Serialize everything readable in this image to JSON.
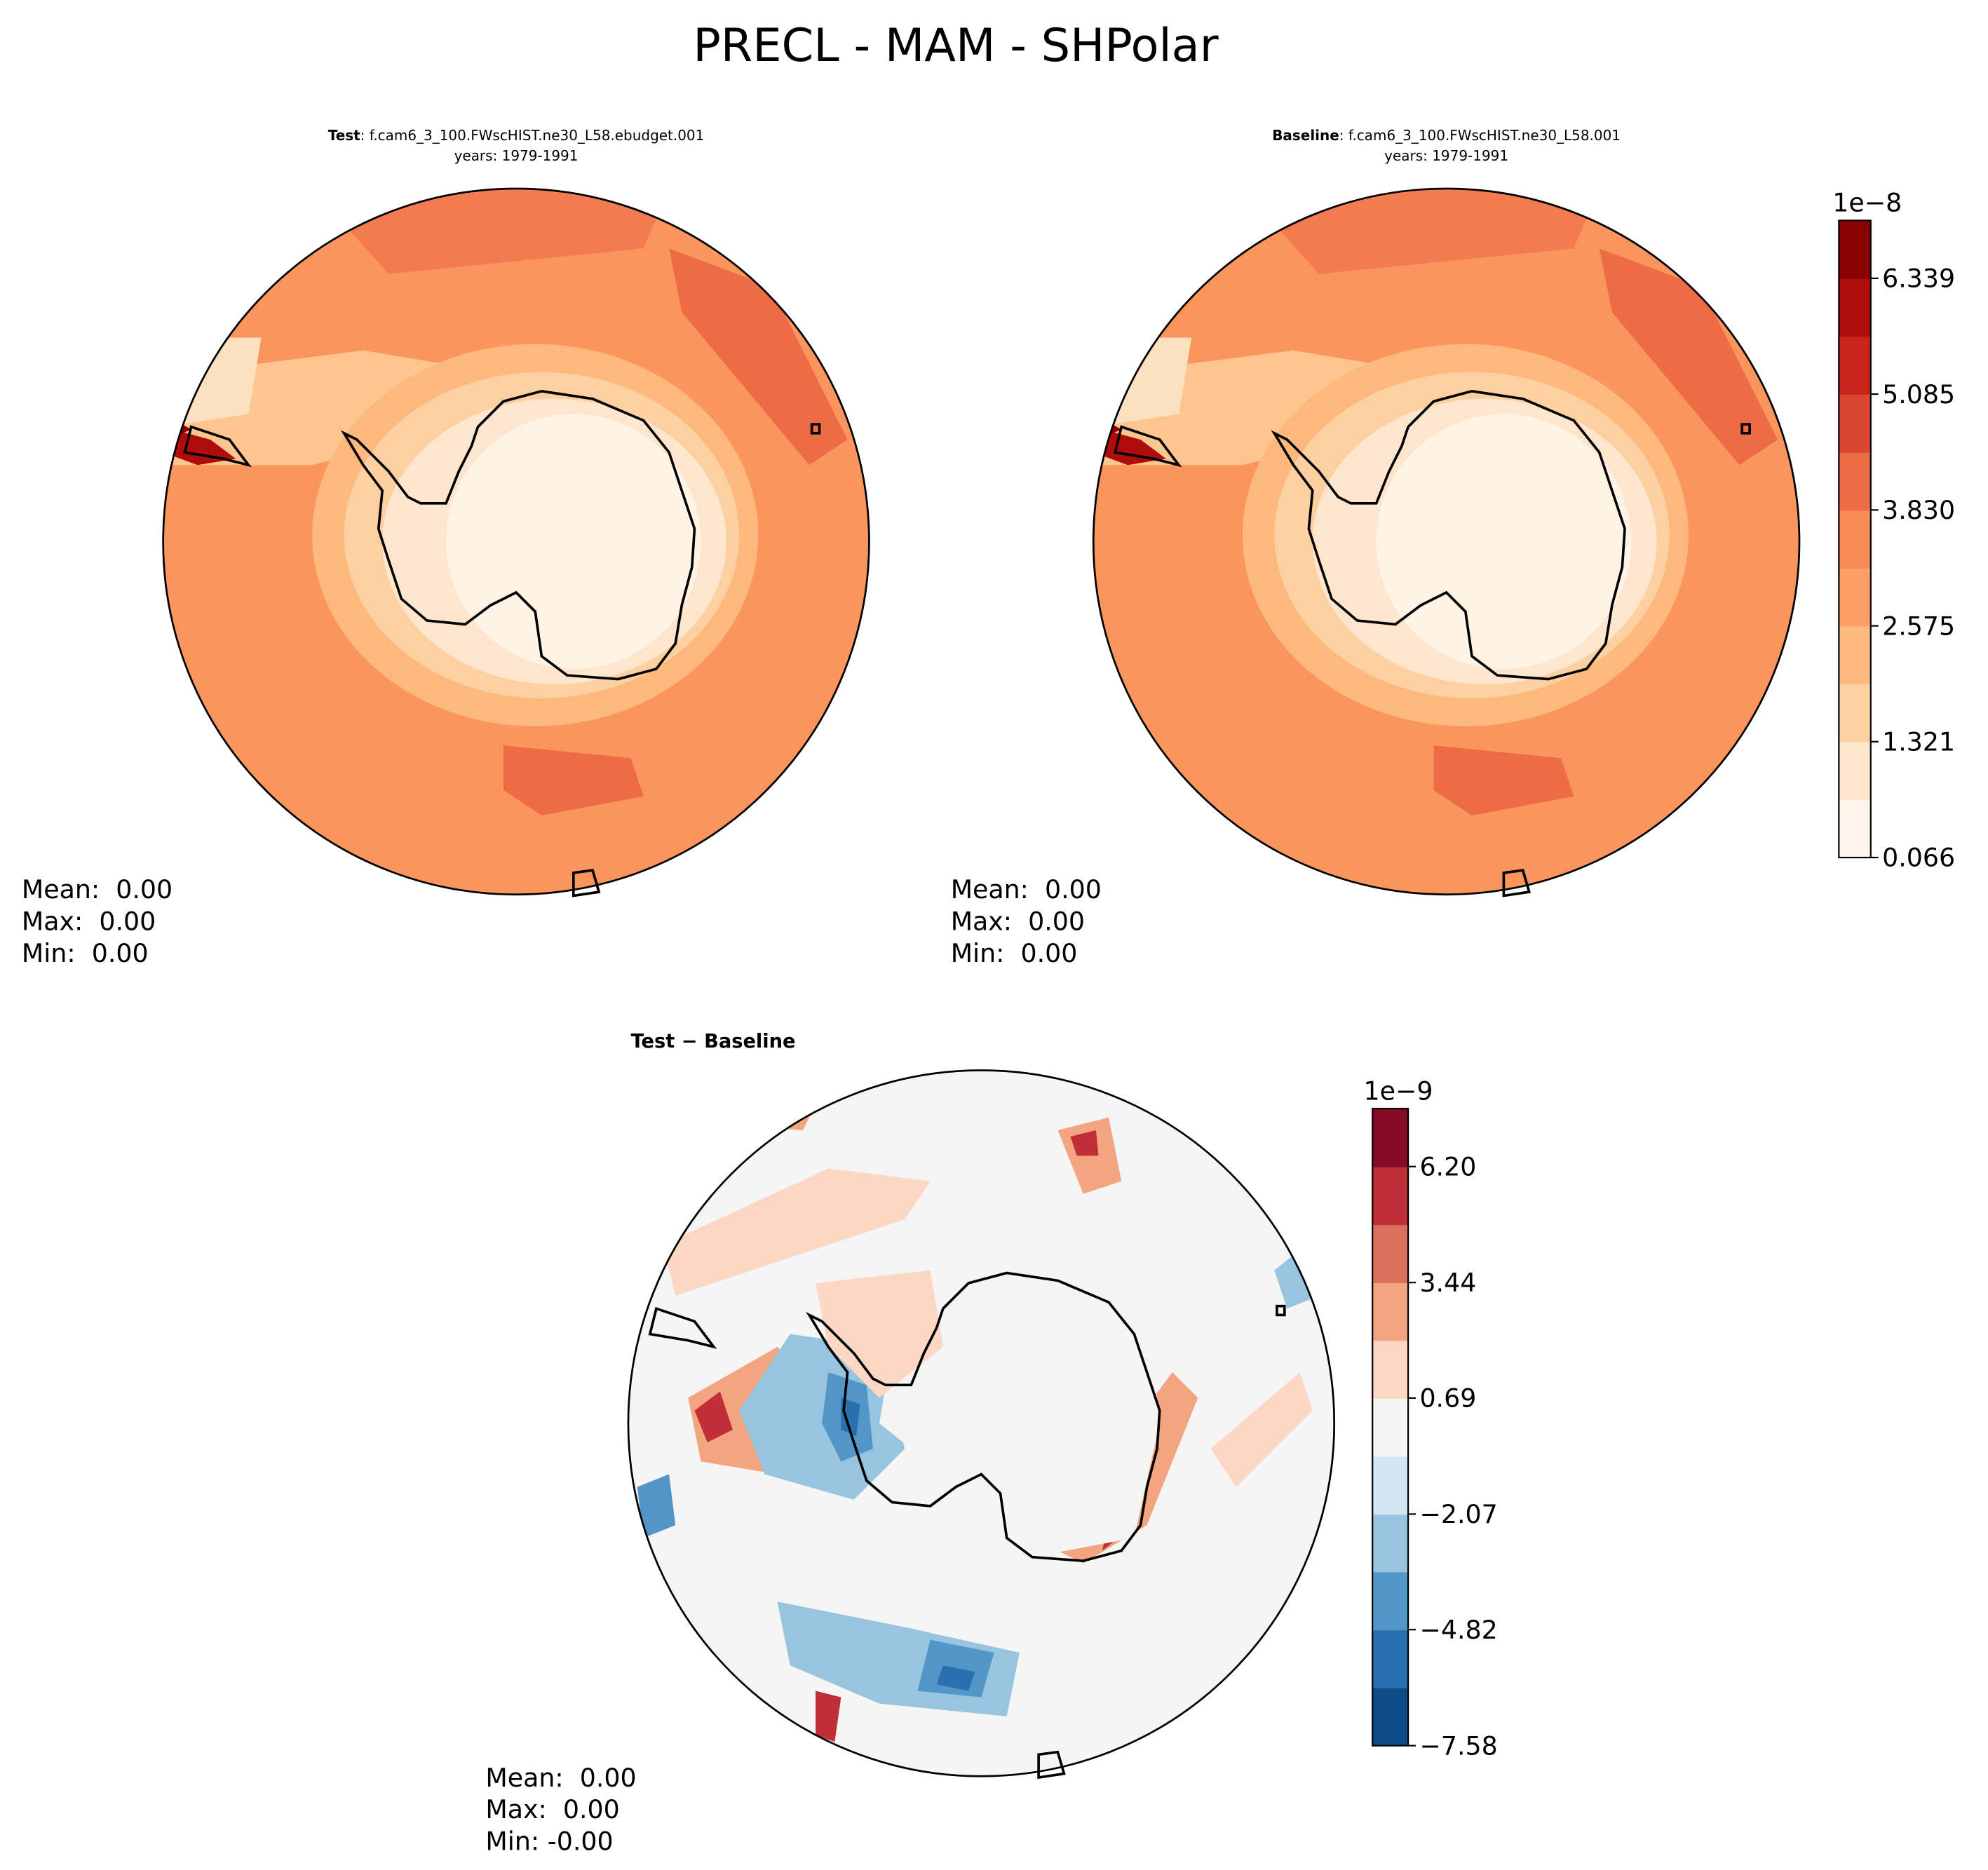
{
  "figure_title": "PRECL - MAM - SHPolar",
  "chart_data": [
    {
      "type": "contour-map",
      "title_bold": "Test",
      "title": ": f.cam6_3_100.FWscHIST.ne30_L58.ebudget.001",
      "subtitle": "years: 1979-1991",
      "stats": [
        "Mean:  0.00",
        "Max:  0.00",
        "Min:  0.00"
      ]
    },
    {
      "type": "contour-map",
      "title_bold": "Baseline",
      "title": ": f.cam6_3_100.FWscHIST.ne30_L58.001",
      "subtitle": "years: 1979-1991",
      "stats": [
        "Mean:  0.00",
        "Max:  0.00",
        "Min:  0.00"
      ],
      "colorbar": {
        "offset_label": "1e−8",
        "ylim": [
          0.066,
          6.966
        ],
        "levels": [
          0.066,
          0.693,
          1.321,
          1.948,
          2.575,
          3.202,
          3.83,
          4.457,
          5.085,
          5.712,
          6.339,
          6.966
        ],
        "colors": [
          "#fff5eb",
          "#fee6ce",
          "#fdd0a2",
          "#fdb97d",
          "#fd9f67",
          "#f98b55",
          "#ee6c45",
          "#dc4630",
          "#c8241c",
          "#b00c0c",
          "#8b0000"
        ],
        "yticks": [
          0.066,
          1.321,
          2.575,
          {
            "value": 3.83,
            "label": "3.830"
          },
          5.085,
          6.339
        ]
      }
    },
    {
      "type": "contour-map",
      "title_bold": "Test − Baseline",
      "stats": [
        "Mean:  0.00",
        "Max:  0.00",
        "Min: -0.00"
      ],
      "colorbar": {
        "offset_label": "1e−9",
        "ylim": [
          -7.58,
          7.58
        ],
        "levels": [
          -7.58,
          -6.2,
          -4.82,
          -3.44,
          -2.07,
          -0.69,
          0.69,
          2.07,
          3.44,
          4.82,
          6.2,
          7.58
        ],
        "colors": [
          "#0f4b87",
          "#2a6fb0",
          "#5296c8",
          "#97c4df",
          "#d3e5f1",
          "#f5f5f5",
          "#fcd8c4",
          "#f3a581",
          "#db6f5b",
          "#be2f38",
          "#870a24"
        ],
        "yticks": [
          {
            "value": -7.58,
            "label": "−7.58"
          },
          {
            "value": -4.82,
            "label": "−4.82"
          },
          {
            "value": -2.07,
            "label": "−2.07"
          },
          0.69,
          3.44,
          {
            "value": 6.2,
            "label": "6.20"
          }
        ]
      }
    }
  ]
}
